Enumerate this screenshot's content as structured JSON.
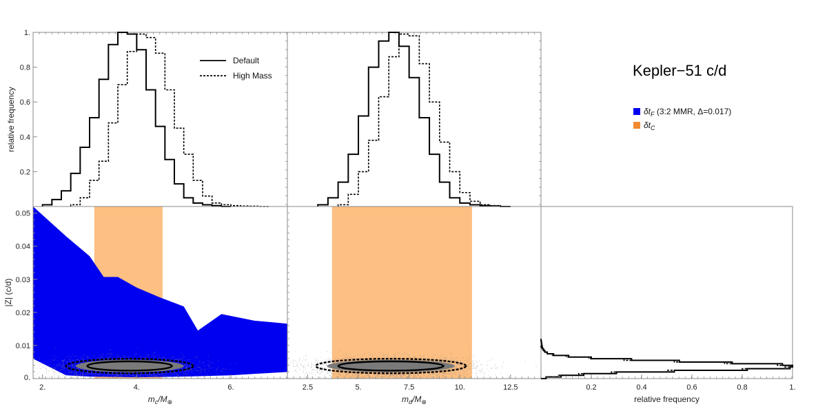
{
  "title": "Kepler−51 c/d",
  "colors": {
    "blue": "#0000f0",
    "orange": "#fdbf82",
    "grey": "#808080",
    "line": "#000000"
  },
  "legend_top": [
    {
      "label": "Default",
      "style": "solid"
    },
    {
      "label": "High Mass",
      "style": "dotted"
    }
  ],
  "legend_regions": [
    {
      "label": "δt_F (3:2 MMR, Δ=0.017)",
      "color": "#0000f0"
    },
    {
      "label": "δt_C",
      "color": "#f08a30"
    }
  ],
  "chart_data": [
    {
      "id": "hist_mc",
      "type": "histogram",
      "ylabel": "relative frequency",
      "xlim": [
        1.8,
        7.2
      ],
      "ylim": [
        0,
        1.0
      ],
      "yticks": [
        {
          "v": 0.2,
          "label": "0.2"
        },
        {
          "v": 0.4,
          "label": "0.4"
        },
        {
          "v": 0.6,
          "label": "0.6"
        },
        {
          "v": 0.8,
          "label": "0.8"
        },
        {
          "v": 1.0,
          "label": "1."
        }
      ],
      "series": [
        {
          "name": "Default",
          "style": "solid",
          "edges": [
            2.0,
            2.2,
            2.4,
            2.6,
            2.8,
            3.0,
            3.2,
            3.4,
            3.6,
            3.8,
            4.0,
            4.2,
            4.4,
            4.6,
            4.8,
            5.0,
            5.2,
            5.4,
            5.6,
            5.8,
            6.0
          ],
          "values": [
            0.01,
            0.04,
            0.09,
            0.19,
            0.34,
            0.51,
            0.73,
            0.93,
            1.0,
            0.99,
            0.9,
            0.67,
            0.46,
            0.27,
            0.13,
            0.05,
            0.02,
            0.01,
            0.005,
            0.0
          ]
        },
        {
          "name": "High Mass",
          "style": "dotted",
          "edges": [
            2.6,
            2.8,
            3.0,
            3.2,
            3.4,
            3.6,
            3.8,
            4.0,
            4.2,
            4.4,
            4.6,
            4.8,
            5.0,
            5.2,
            5.4,
            5.6,
            5.8,
            6.0,
            6.2,
            6.4,
            6.6,
            6.8
          ],
          "values": [
            0.01,
            0.05,
            0.15,
            0.26,
            0.48,
            0.7,
            0.89,
            0.99,
            0.97,
            0.88,
            0.67,
            0.45,
            0.3,
            0.15,
            0.06,
            0.02,
            0.01,
            0.005,
            0.003,
            0.002,
            0.0
          ]
        }
      ]
    },
    {
      "id": "hist_md",
      "type": "histogram",
      "xlim": [
        1.5,
        14.0
      ],
      "ylim": [
        0,
        1.0
      ],
      "series": [
        {
          "name": "Default",
          "style": "solid",
          "edges": [
            3.0,
            3.5,
            4.0,
            4.5,
            5.0,
            5.5,
            6.0,
            6.5,
            7.0,
            7.5,
            8.0,
            8.5,
            9.0,
            9.5,
            10.0,
            10.5,
            11.0,
            11.5,
            12.0,
            12.5
          ],
          "values": [
            0.01,
            0.05,
            0.14,
            0.3,
            0.52,
            0.8,
            0.95,
            1.0,
            0.92,
            0.74,
            0.51,
            0.3,
            0.14,
            0.05,
            0.02,
            0.01,
            0.005,
            0.003,
            0.0
          ]
        },
        {
          "name": "High Mass",
          "style": "dotted",
          "edges": [
            4.0,
            4.5,
            5.0,
            5.5,
            6.0,
            6.5,
            7.0,
            7.5,
            8.0,
            8.5,
            9.0,
            9.5,
            10.0,
            10.5,
            11.0,
            11.5,
            12.0,
            12.5
          ],
          "values": [
            0.01,
            0.07,
            0.2,
            0.38,
            0.63,
            0.86,
            0.99,
            0.98,
            0.82,
            0.6,
            0.37,
            0.2,
            0.08,
            0.03,
            0.01,
            0.005,
            0.0
          ]
        }
      ]
    },
    {
      "id": "scatter_mc",
      "type": "scatter",
      "xlabel": "m_c/M_⊕",
      "ylabel": "|Z| (c/d)",
      "xlim": [
        1.8,
        7.2
      ],
      "ylim": [
        0,
        0.052
      ],
      "xticks": [
        {
          "v": 2,
          "label": "2."
        },
        {
          "v": 4,
          "label": "4."
        },
        {
          "v": 6,
          "label": "6."
        }
      ],
      "yticks": [
        {
          "v": 0.01,
          "label": "0.01"
        },
        {
          "v": 0.02,
          "label": "0.02"
        },
        {
          "v": 0.03,
          "label": "0.03"
        },
        {
          "v": 0.04,
          "label": "0.04"
        },
        {
          "v": 0.05,
          "label": "0.05"
        }
      ],
      "ytick_zero_label": "0.",
      "region_F_upper": [
        [
          1.8,
          0.052
        ],
        [
          2.5,
          0.043
        ],
        [
          3.0,
          0.037
        ],
        [
          3.3,
          0.0307
        ],
        [
          3.6,
          0.0307
        ],
        [
          4.0,
          0.0275
        ],
        [
          4.5,
          0.0245
        ],
        [
          5.0,
          0.0218
        ],
        [
          5.3,
          0.0145
        ],
        [
          5.8,
          0.0195
        ],
        [
          6.5,
          0.0175
        ],
        [
          7.2,
          0.0166
        ]
      ],
      "region_F_lower": [
        [
          7.2,
          0.002
        ],
        [
          6.0,
          0.001
        ],
        [
          5.0,
          0.0006
        ],
        [
          4.0,
          0.0004
        ],
        [
          3.0,
          0.0006
        ],
        [
          2.5,
          0.001
        ],
        [
          1.8,
          0.006
        ]
      ],
      "region_C_x": [
        3.1,
        4.55
      ],
      "region_C_y": [
        0,
        0.052
      ],
      "cloud": {
        "cx": 3.75,
        "cy": 0.0035,
        "sx": 0.75,
        "sy": 0.0016
      },
      "contour_inner": {
        "cx": 3.85,
        "cy": 0.0038,
        "rx": 0.9,
        "ry": 0.0014
      },
      "contour_outer": {
        "cx": 3.85,
        "cy": 0.0038,
        "rx": 1.35,
        "ry": 0.0022
      }
    },
    {
      "id": "scatter_md",
      "type": "scatter",
      "xlabel": "m_d/M_⊕",
      "xlim": [
        1.5,
        14.0
      ],
      "ylim": [
        0,
        0.052
      ],
      "xticks": [
        {
          "v": 2.5,
          "label": "2.5"
        },
        {
          "v": 5,
          "label": "5."
        },
        {
          "v": 7.5,
          "label": "7.5"
        },
        {
          "v": 10,
          "label": "10."
        },
        {
          "v": 12.5,
          "label": "12.5"
        }
      ],
      "region_C_x": [
        3.7,
        10.6
      ],
      "region_C_y": [
        0,
        0.052
      ],
      "cloud": {
        "cx": 6.6,
        "cy": 0.0035,
        "sx": 2.0,
        "sy": 0.0016
      },
      "contour_inner": {
        "cx": 6.6,
        "cy": 0.0038,
        "rx": 2.6,
        "ry": 0.0014
      },
      "contour_outer": {
        "cx": 6.6,
        "cy": 0.0038,
        "rx": 3.7,
        "ry": 0.0022
      }
    },
    {
      "id": "hist_z",
      "type": "histogram_horizontal",
      "xlabel": "relative frequency",
      "xlim": [
        0,
        1.0
      ],
      "ylim": [
        0,
        0.052
      ],
      "xticks": [
        {
          "v": 0.2,
          "label": "0.2"
        },
        {
          "v": 0.4,
          "label": "0.4"
        },
        {
          "v": 0.6,
          "label": "0.6"
        },
        {
          "v": 0.8,
          "label": "0.8"
        },
        {
          "v": 1.0,
          "label": "1."
        }
      ],
      "series": [
        {
          "name": "Default",
          "style": "solid",
          "edges": [
            0,
            0.0005,
            0.001,
            0.0015,
            0.002,
            0.0025,
            0.003,
            0.0035,
            0.004,
            0.0045,
            0.005,
            0.0055,
            0.006,
            0.0065,
            0.007,
            0.0075,
            0.008,
            0.0085,
            0.009,
            0.0095,
            0.01,
            0.0105,
            0.011,
            0.0115,
            0.012
          ],
          "values": [
            0.02,
            0.08,
            0.17,
            0.3,
            0.53,
            0.82,
            0.99,
            1.0,
            0.96,
            0.76,
            0.55,
            0.36,
            0.2,
            0.11,
            0.05,
            0.025,
            0.015,
            0.01,
            0.006,
            0.004,
            0.003,
            0.002,
            0.001,
            0.0
          ]
        },
        {
          "name": "High Mass",
          "style": "dotted",
          "edges": [
            0,
            0.0005,
            0.001,
            0.0015,
            0.002,
            0.0025,
            0.003,
            0.0035,
            0.004,
            0.0045,
            0.005,
            0.0055,
            0.006,
            0.0065,
            0.007,
            0.0075,
            0.008,
            0.0085,
            0.009,
            0.0095,
            0.01
          ],
          "values": [
            0.02,
            0.07,
            0.15,
            0.28,
            0.5,
            0.8,
            0.97,
            1.0,
            0.94,
            0.73,
            0.53,
            0.33,
            0.19,
            0.1,
            0.045,
            0.02,
            0.012,
            0.008,
            0.004,
            0.0
          ]
        }
      ]
    }
  ]
}
